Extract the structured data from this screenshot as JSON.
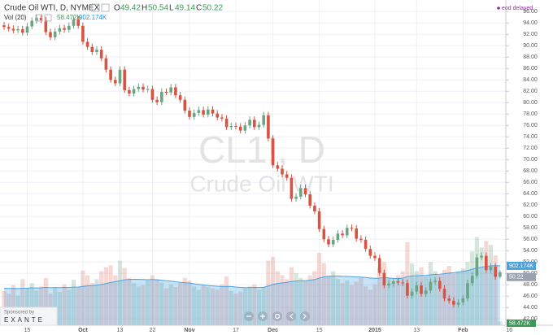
{
  "chart_data": {
    "type": "candlestick",
    "title": "Crude Oil WTI, D, NYMEX",
    "ohlc_letters": [
      "O",
      "H",
      "L",
      "C"
    ],
    "status": "eod delayed",
    "watermark_symbol": "CL1!, D",
    "watermark_name": "Crude Oil WTI",
    "sponsor": {
      "label": "Sponsored by",
      "name": "EXANTE"
    },
    "up_color": "#6ba583",
    "down_color": "#d75442",
    "open": [
      93.6,
      93.3,
      93.0,
      92.7,
      92.9,
      92.3,
      93.4,
      94.4,
      94.9,
      94.5,
      92.4,
      91.5,
      92.5,
      93.1,
      92.8,
      93.5,
      94.6,
      93.5,
      90.7,
      89.8,
      88.9,
      89.3,
      87.8,
      85.8,
      84.0,
      83.4,
      85.8,
      82.2,
      81.6,
      82.4,
      82.8,
      82.3,
      82.4,
      80.5,
      80.1,
      81.9,
      81.8,
      82.7,
      81.3,
      80.5,
      78.6,
      77.5,
      78.2,
      78.7,
      77.9,
      78.8,
      78.1,
      77.4,
      77.2,
      75.7,
      75.9,
      75.8,
      75.1,
      76.0,
      77.0,
      75.7,
      76.1,
      77.8,
      73.7,
      69.0,
      68.4,
      67.4,
      66.8,
      63.1,
      63.5,
      65.0,
      63.9,
      61.9,
      60.9,
      57.8,
      56.0,
      55.1,
      55.9,
      57.0,
      56.7,
      58.0,
      57.9,
      56.1,
      55.9,
      54.3,
      53.1,
      52.7,
      50.1,
      47.9,
      48.2,
      48.6,
      48.4,
      48.3,
      46.1,
      46.8,
      47.9,
      46.4,
      47.0,
      48.5,
      48.7,
      47.3,
      45.6,
      45.2,
      44.5,
      44.9,
      45.6,
      48.3,
      49.6,
      52.8,
      53.1,
      50.6,
      51.2,
      49.42
    ],
    "high": [
      94.2,
      93.9,
      93.6,
      93.5,
      93.5,
      94.0,
      95.0,
      95.5,
      95.5,
      95.1,
      93.0,
      93.1,
      93.7,
      93.7,
      94.1,
      95.2,
      95.2,
      94.1,
      91.3,
      90.4,
      89.9,
      89.9,
      88.4,
      86.4,
      84.6,
      86.4,
      86.4,
      82.8,
      83.0,
      83.4,
      83.4,
      83.0,
      83.0,
      81.1,
      82.5,
      82.5,
      83.3,
      83.3,
      81.9,
      81.1,
      79.2,
      78.8,
      79.3,
      79.3,
      79.4,
      79.4,
      78.7,
      78.0,
      77.8,
      76.5,
      76.5,
      76.4,
      76.6,
      77.6,
      77.6,
      76.7,
      78.4,
      78.4,
      74.3,
      69.6,
      69.0,
      68.0,
      67.4,
      64.1,
      65.6,
      65.6,
      64.5,
      62.5,
      61.5,
      58.4,
      56.6,
      56.5,
      57.6,
      57.6,
      58.6,
      58.6,
      58.5,
      56.7,
      56.5,
      54.9,
      53.7,
      53.3,
      50.7,
      48.8,
      49.2,
      49.2,
      49.0,
      48.9,
      47.4,
      48.5,
      48.5,
      47.6,
      49.1,
      49.3,
      49.3,
      47.9,
      46.2,
      45.8,
      45.5,
      46.2,
      48.9,
      50.2,
      53.4,
      53.7,
      53.7,
      51.8,
      51.8,
      50.54
    ],
    "low": [
      92.8,
      92.5,
      92.2,
      92.2,
      91.8,
      91.8,
      92.9,
      93.9,
      94.0,
      91.9,
      91.0,
      91.0,
      92.0,
      92.3,
      92.3,
      93.0,
      93.0,
      90.2,
      89.3,
      88.4,
      88.4,
      87.3,
      85.3,
      83.5,
      82.9,
      82.9,
      81.7,
      81.1,
      81.1,
      81.9,
      81.8,
      81.8,
      80.0,
      79.6,
      79.6,
      81.3,
      81.3,
      80.8,
      80.0,
      78.1,
      77.0,
      77.0,
      77.7,
      77.4,
      77.4,
      77.6,
      76.9,
      76.7,
      75.2,
      75.2,
      75.3,
      74.6,
      74.6,
      75.5,
      75.2,
      75.2,
      75.6,
      73.2,
      68.5,
      67.9,
      66.9,
      66.3,
      62.6,
      62.6,
      63.0,
      63.4,
      61.4,
      60.4,
      57.3,
      55.5,
      54.6,
      54.6,
      55.4,
      56.2,
      56.2,
      57.4,
      55.6,
      55.4,
      53.8,
      52.6,
      52.2,
      49.6,
      47.4,
      47.4,
      47.7,
      47.9,
      47.8,
      45.6,
      45.6,
      46.3,
      45.9,
      45.9,
      46.5,
      48.0,
      46.8,
      45.1,
      44.7,
      44.0,
      44.0,
      44.4,
      45.1,
      47.8,
      49.1,
      52.3,
      50.1,
      50.1,
      48.9,
      49.14
    ],
    "close": [
      93.3,
      93.0,
      92.7,
      92.9,
      92.3,
      93.4,
      94.4,
      94.9,
      94.5,
      92.4,
      91.5,
      92.5,
      93.1,
      92.8,
      93.5,
      94.6,
      93.5,
      90.7,
      89.8,
      88.9,
      89.3,
      87.8,
      85.8,
      84.0,
      83.4,
      85.8,
      82.2,
      81.6,
      82.4,
      82.8,
      82.3,
      82.4,
      80.5,
      80.1,
      81.9,
      81.8,
      82.7,
      81.3,
      80.5,
      78.6,
      77.5,
      78.2,
      78.7,
      77.9,
      78.8,
      78.1,
      77.4,
      77.2,
      75.7,
      75.9,
      75.8,
      75.1,
      76.0,
      77.0,
      75.7,
      76.1,
      77.8,
      73.7,
      69.0,
      68.4,
      67.4,
      66.8,
      63.1,
      63.5,
      65.0,
      63.9,
      61.9,
      60.9,
      57.8,
      56.0,
      55.1,
      55.9,
      57.0,
      56.7,
      58.0,
      57.9,
      56.1,
      55.9,
      54.3,
      53.1,
      52.7,
      50.1,
      47.9,
      48.2,
      48.6,
      48.4,
      48.3,
      46.1,
      46.8,
      47.9,
      46.4,
      47.0,
      48.5,
      48.7,
      47.3,
      45.6,
      45.2,
      44.5,
      44.9,
      45.6,
      48.3,
      49.6,
      52.8,
      53.1,
      50.6,
      51.2,
      49.4,
      50.22
    ],
    "volume": {
      "name": "Vol (20)",
      "values": [
        520,
        480,
        610,
        450,
        700,
        560,
        640,
        530,
        590,
        720,
        480,
        560,
        510,
        620,
        540,
        690,
        580,
        830,
        760,
        640,
        700,
        820,
        880,
        910,
        760,
        980,
        870,
        720,
        640,
        590,
        610,
        680,
        760,
        700,
        650,
        560,
        620,
        580,
        640,
        720,
        680,
        590,
        540,
        610,
        580,
        560,
        540,
        620,
        740,
        520,
        480,
        510,
        560,
        590,
        620,
        540,
        580,
        980,
        1040,
        820,
        760,
        700,
        880,
        790,
        720,
        680,
        760,
        820,
        1100,
        940,
        760,
        820,
        700,
        640,
        680,
        610,
        660,
        720,
        590,
        540,
        620,
        880,
        960,
        720,
        680,
        760,
        820,
        1260,
        940,
        820,
        880,
        740,
        960,
        820,
        760,
        840,
        900,
        780,
        820,
        860,
        960,
        1120,
        1340,
        1180,
        1280,
        1220,
        1060,
        58.472
      ],
      "last_label": "58.472K",
      "ma": [
        560,
        558,
        560,
        556,
        562,
        564,
        568,
        566,
        568,
        574,
        570,
        572,
        570,
        574,
        572,
        578,
        580,
        590,
        598,
        602,
        608,
        620,
        634,
        650,
        660,
        676,
        690,
        696,
        698,
        696,
        694,
        692,
        694,
        690,
        684,
        676,
        670,
        660,
        652,
        646,
        640,
        630,
        620,
        612,
        604,
        598,
        592,
        588,
        590,
        588,
        580,
        574,
        570,
        572,
        574,
        572,
        576,
        596,
        620,
        634,
        644,
        652,
        664,
        672,
        676,
        678,
        684,
        694,
        716,
        734,
        740,
        748,
        748,
        744,
        742,
        738,
        734,
        732,
        726,
        718,
        712,
        716,
        722,
        718,
        712,
        708,
        714,
        740,
        750,
        752,
        756,
        756,
        766,
        772,
        774,
        782,
        792,
        798,
        808,
        818,
        830,
        850,
        870,
        882,
        894,
        902,
        904,
        902.174
      ],
      "ma_last_label": "902.174K",
      "ma_color": "#4aa3df",
      "y2lim": [
        0,
        4840
      ]
    },
    "ylim": [
      40.9,
      96.9
    ],
    "yticks": [
      {
        "value": 42,
        "label": "42.00"
      },
      {
        "value": 44,
        "label": "44.00"
      },
      {
        "value": 46,
        "label": "46.00"
      },
      {
        "value": 48,
        "label": "48.00"
      },
      {
        "value": 50,
        "label": "50.00"
      },
      {
        "value": 52,
        "label": "52.00"
      },
      {
        "value": 54,
        "label": "54.00"
      },
      {
        "value": 56,
        "label": "56.00"
      },
      {
        "value": 58,
        "label": "58.00"
      },
      {
        "value": 60,
        "label": "60.00"
      },
      {
        "value": 62,
        "label": "62.00"
      },
      {
        "value": 64,
        "label": "64.00"
      },
      {
        "value": 66,
        "label": "66.00"
      },
      {
        "value": 68,
        "label": "68.00"
      },
      {
        "value": 70,
        "label": "70.00"
      },
      {
        "value": 72,
        "label": "72.00"
      },
      {
        "value": 74,
        "label": "74.00"
      },
      {
        "value": 76,
        "label": "76.00"
      },
      {
        "value": 78,
        "label": "78.00"
      },
      {
        "value": 80,
        "label": "80.00"
      },
      {
        "value": 82,
        "label": "82.00"
      },
      {
        "value": 84,
        "label": "84.00"
      },
      {
        "value": 86,
        "label": "86.00"
      },
      {
        "value": 88,
        "label": "88.00"
      },
      {
        "value": 90,
        "label": "90.00"
      },
      {
        "value": 92,
        "label": "92.00"
      },
      {
        "value": 94,
        "label": "94.00"
      },
      {
        "value": 96,
        "label": "96.00"
      }
    ],
    "xticks": [
      {
        "value": 5,
        "label": "15"
      },
      {
        "value": 17,
        "label": "Oct"
      },
      {
        "value": 25,
        "label": "13"
      },
      {
        "value": 32,
        "label": "22"
      },
      {
        "value": 40,
        "label": "Nov"
      },
      {
        "value": 50,
        "label": "17"
      },
      {
        "value": 58,
        "label": "Dec"
      },
      {
        "value": 68,
        "label": "15"
      },
      {
        "value": 80,
        "label": "2015"
      },
      {
        "value": 89,
        "label": "13"
      },
      {
        "value": 99,
        "label": "Feb"
      },
      {
        "value": 109,
        "label": "16"
      }
    ],
    "grid": true
  }
}
